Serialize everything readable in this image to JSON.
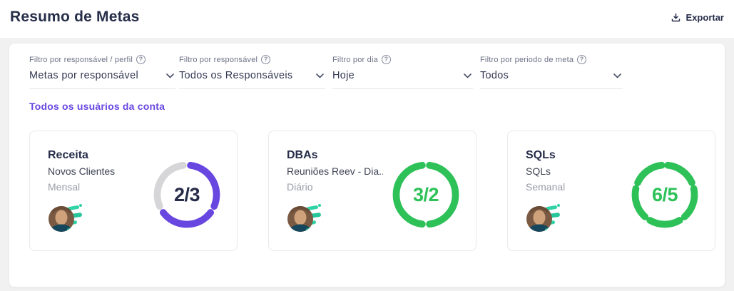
{
  "page": {
    "title": "Resumo de Metas",
    "export_label": "Exportar"
  },
  "icons": {
    "help_glyph": "?"
  },
  "filters": [
    {
      "label": "Filtro por responsável / perfil",
      "value": "Metas por responsável"
    },
    {
      "label": "Filtro por responsável",
      "value": "Todos os Responsáveis"
    },
    {
      "label": "Filtro por dia",
      "value": "Hoje"
    },
    {
      "label": "Filtro por periodo de meta",
      "value": "Todos"
    }
  ],
  "scope_link": "Todos os usuários da conta",
  "cards": [
    {
      "title": "Receita",
      "subtitle": "Novos Clientes",
      "period": "Mensal",
      "progress_label": "2/3",
      "achieved": 2,
      "target": 3,
      "ring_color": "#6847e1",
      "text_color": "#252b48"
    },
    {
      "title": "DBAs",
      "subtitle": "Reuniões Reev - Dia...",
      "period": "Diário",
      "progress_label": "3/2",
      "achieved": 3,
      "target": 2,
      "ring_color": "#2dc158",
      "text_color": "#2dc158"
    },
    {
      "title": "SQLs",
      "subtitle": "SQLs",
      "period": "Semanal",
      "progress_label": "6/5",
      "achieved": 6,
      "target": 5,
      "ring_color": "#2dc158",
      "text_color": "#2dc158"
    }
  ],
  "colors": {
    "ring_empty": "#d6d6d8",
    "accent_purple": "#6847e1",
    "accent_green": "#2dc158",
    "heading_navy": "#272e4a",
    "page_bg": "#f1f1f2"
  }
}
